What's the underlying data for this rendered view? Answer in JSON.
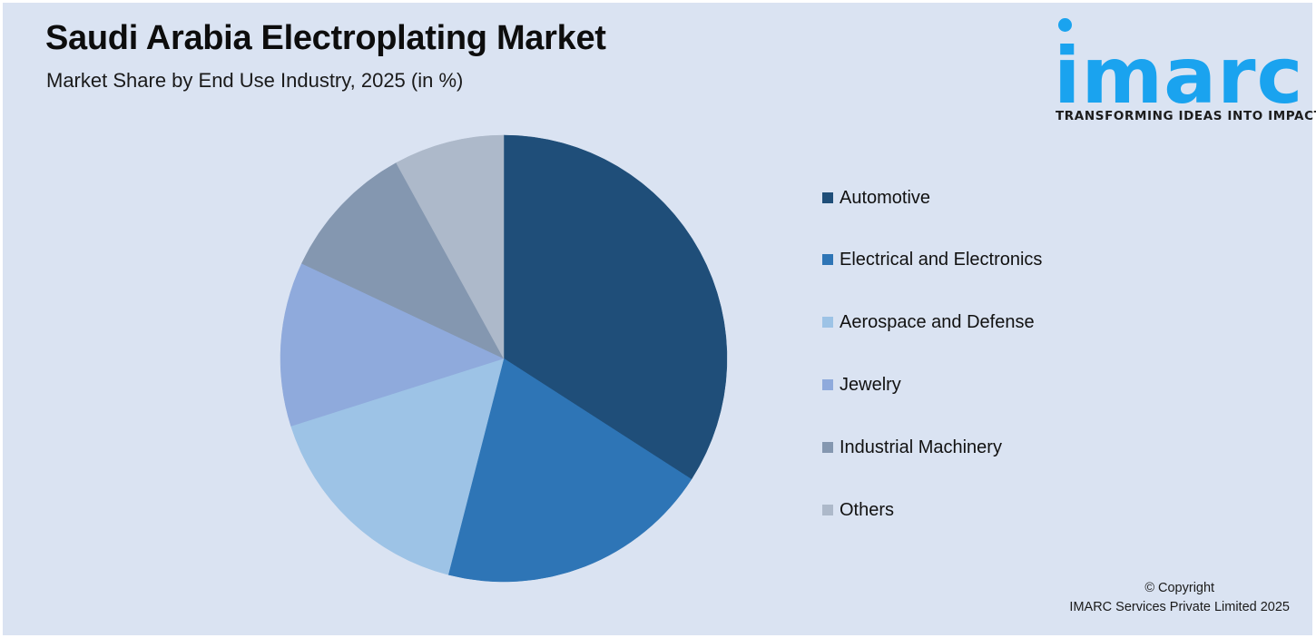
{
  "header": {
    "title": "Saudi Arabia Electroplating Market",
    "subtitle": "Market Share by End Use Industry, 2025 (in %)"
  },
  "logo": {
    "word": "imarc",
    "tagline": "TRANSFORMING IDEAS INTO IMPACT",
    "color": "#1aa3ef"
  },
  "footer": {
    "copyright_line1": "© Copyright",
    "copyright_line2": "IMARC Services Private Limited 2025"
  },
  "legend": {
    "items": [
      {
        "label": "Automotive",
        "color": "#1f4e79"
      },
      {
        "label": "Electrical and Electronics",
        "color": "#2e75b6"
      },
      {
        "label": "Aerospace and Defense",
        "color": "#9dc3e6"
      },
      {
        "label": "Jewelry",
        "color": "#8faadc"
      },
      {
        "label": "Industrial Machinery",
        "color": "#8497b0"
      },
      {
        "label": "Others",
        "color": "#adb9ca"
      }
    ]
  },
  "chart_data": {
    "type": "pie",
    "title": "Saudi Arabia Electroplating Market",
    "subtitle": "Market Share by End Use Industry, 2025 (in %)",
    "categories": [
      "Automotive",
      "Electrical and Electronics",
      "Aerospace and Defense",
      "Jewelry",
      "Industrial Machinery",
      "Others"
    ],
    "values": [
      34.1,
      19.9,
      16.1,
      11.9,
      10.0,
      8.0
    ],
    "colors": [
      "#1f4e79",
      "#2e75b6",
      "#9dc3e6",
      "#8faadc",
      "#8497b0",
      "#adb9ca"
    ],
    "start_angle": "12 o'clock, clockwise",
    "legend_position": "right",
    "data_labels": false
  }
}
